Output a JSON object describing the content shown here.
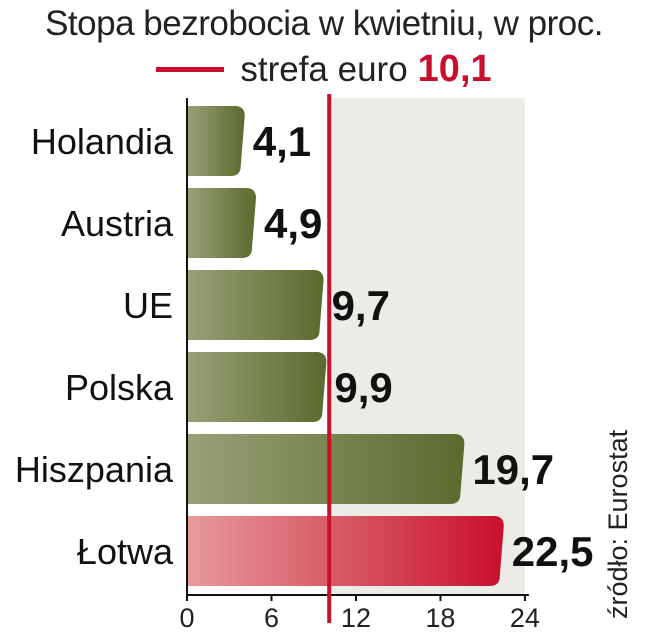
{
  "chart_data": {
    "type": "bar",
    "orientation": "horizontal",
    "title": "Stopa bezrobocia w kwietniu, w proc.",
    "reference": {
      "label": "strefa euro",
      "value": 10.1,
      "value_label": "10,1"
    },
    "categories": [
      "Holandia",
      "Austria",
      "UE",
      "Polska",
      "Hiszpania",
      "Łotwa"
    ],
    "values": [
      4.1,
      4.9,
      9.7,
      9.9,
      19.7,
      22.5
    ],
    "value_labels": [
      "4,1",
      "4,9",
      "9,7",
      "9,9",
      "19,7",
      "22,5"
    ],
    "highlight": "Łotwa",
    "xlim": [
      0,
      24
    ],
    "xticks": [
      0,
      6,
      12,
      18,
      24
    ],
    "xtick_labels": [
      "0",
      "6",
      "12",
      "18",
      "24"
    ],
    "grid": false
  },
  "source": "źródło: Eurostat",
  "colors": {
    "bar": "#5c6a2e",
    "bar_light": "#98a177",
    "highlight": "#c8102e",
    "highlight_light": "#e69b9b",
    "reference_line": "#c8102e",
    "zone_shade": "#ecece6"
  }
}
